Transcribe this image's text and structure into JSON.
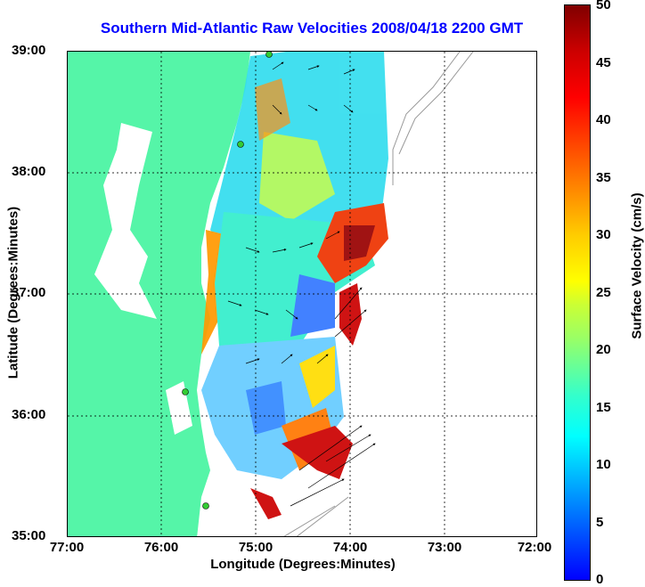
{
  "title": "Southern Mid-Atlantic Raw Velocities 2008/04/18 2200 GMT",
  "axes": {
    "x_label": "Longitude (Degrees:Minutes)",
    "y_label": "Latitude (Degrees:Minutes)",
    "x_ticks": [
      "77:00",
      "76:00",
      "75:00",
      "74:00",
      "73:00",
      "72:00"
    ],
    "y_ticks": [
      "39:00",
      "38:00",
      "37:00",
      "36:00",
      "35:00"
    ]
  },
  "colorbar": {
    "title": "Surface Velocity (cm/s)",
    "ticks": [
      "50",
      "45",
      "40",
      "35",
      "30",
      "25",
      "20",
      "15",
      "10",
      "5",
      "0"
    ],
    "range": [
      0,
      50
    ]
  },
  "colors": {
    "land": "#55f5a8",
    "title": "#0000ff",
    "station": "#33cc33"
  }
}
